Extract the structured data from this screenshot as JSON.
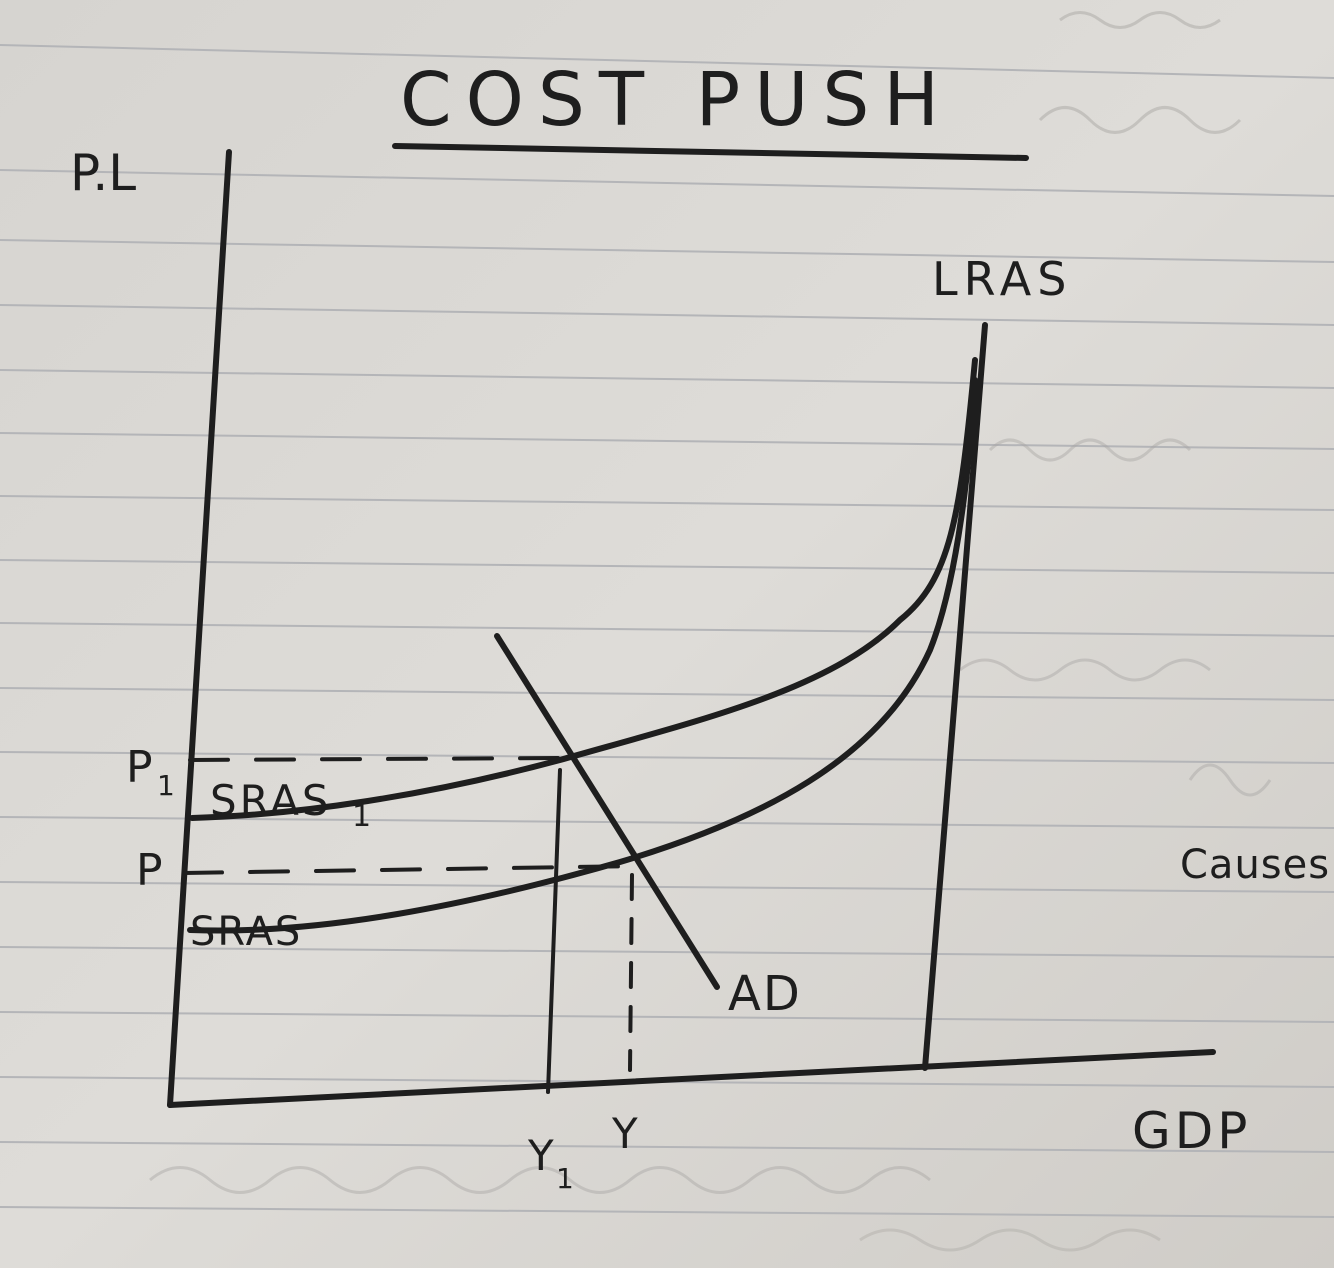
{
  "diagram": {
    "title": "COST PUSH",
    "y_axis_label": "P.L",
    "x_axis_label": "GDP",
    "curves": {
      "lras": "LRAS",
      "sras_original": "SRAS",
      "sras_shifted": "SRAS",
      "sras_shifted_subscript": "1",
      "ad": "AD"
    },
    "price_levels": {
      "p1": "P",
      "p1_subscript": "1",
      "p": "P"
    },
    "output_levels": {
      "y1": "Y",
      "y1_subscript": "1",
      "y": "Y"
    },
    "side_note": "Causes"
  },
  "colors": {
    "paper": "#dcdad6",
    "ink": "#1e1e1e",
    "ruled_line": "#b4b5b8"
  }
}
